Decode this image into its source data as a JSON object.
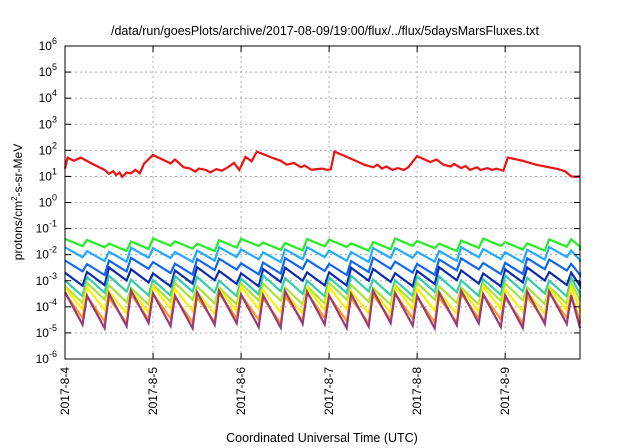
{
  "chart_data": {
    "type": "line",
    "title": "/data/run/goesPlots/archive/2017-08-09/19:00/flux/../flux/5daysMarsFluxes.txt",
    "xlabel": "Coordinated Universal Time (UTC)",
    "ylabel": {
      "base": "protons/cm",
      "sup": "2",
      "rest": "-s-sr-MeV"
    },
    "xlim": [
      0,
      5.85
    ],
    "ylim_log10": [
      -6,
      6
    ],
    "yscale": "log",
    "grid": true,
    "x_tick_labels": [
      "2017-8-4",
      "2017-8-5",
      "2017-8-6",
      "2017-8-7",
      "2017-8-8",
      "2017-8-9"
    ],
    "x_tick_values": [
      0,
      1,
      2,
      3,
      4,
      5
    ],
    "y_tick_labels": [
      {
        "exp": "-6"
      },
      {
        "exp": "-5"
      },
      {
        "exp": "-4"
      },
      {
        "exp": "-3"
      },
      {
        "exp": "-2"
      },
      {
        "exp": "-1"
      },
      {
        "exp": "0"
      },
      {
        "exp": "1"
      },
      {
        "exp": "2"
      },
      {
        "exp": "3"
      },
      {
        "exp": "4"
      },
      {
        "exp": "5"
      },
      {
        "exp": "6"
      }
    ],
    "y_tick_base": "10",
    "cycles_per_day": 4,
    "series": [
      {
        "color": "#ee1111",
        "log_points": [
          [
            0.0,
            1.3
          ],
          [
            0.03,
            1.72
          ],
          [
            0.1,
            1.6
          ],
          [
            0.18,
            1.72
          ],
          [
            0.3,
            1.5
          ],
          [
            0.45,
            1.25
          ],
          [
            0.5,
            1.1
          ],
          [
            0.55,
            1.2
          ],
          [
            0.58,
            1.05
          ],
          [
            0.62,
            1.15
          ],
          [
            0.65,
            0.98
          ],
          [
            0.7,
            1.15
          ],
          [
            0.75,
            1.12
          ],
          [
            0.8,
            1.25
          ],
          [
            0.85,
            1.12
          ],
          [
            0.9,
            1.5
          ],
          [
            1.0,
            1.82
          ],
          [
            1.2,
            1.5
          ],
          [
            1.25,
            1.65
          ],
          [
            1.35,
            1.35
          ],
          [
            1.42,
            1.3
          ],
          [
            1.48,
            1.18
          ],
          [
            1.52,
            1.3
          ],
          [
            1.6,
            1.25
          ],
          [
            1.65,
            1.15
          ],
          [
            1.72,
            1.28
          ],
          [
            1.78,
            1.22
          ],
          [
            1.85,
            1.35
          ],
          [
            1.92,
            1.52
          ],
          [
            1.98,
            1.25
          ],
          [
            2.05,
            1.75
          ],
          [
            2.12,
            1.58
          ],
          [
            2.18,
            1.95
          ],
          [
            2.35,
            1.72
          ],
          [
            2.45,
            1.6
          ],
          [
            2.52,
            1.45
          ],
          [
            2.6,
            1.52
          ],
          [
            2.68,
            1.35
          ],
          [
            2.72,
            1.42
          ],
          [
            2.8,
            1.25
          ],
          [
            2.86,
            1.28
          ],
          [
            2.92,
            1.3
          ],
          [
            2.98,
            1.25
          ],
          [
            3.02,
            1.28
          ],
          [
            3.06,
            1.95
          ],
          [
            3.2,
            1.75
          ],
          [
            3.3,
            1.6
          ],
          [
            3.4,
            1.45
          ],
          [
            3.5,
            1.35
          ],
          [
            3.55,
            1.45
          ],
          [
            3.6,
            1.3
          ],
          [
            3.65,
            1.38
          ],
          [
            3.72,
            1.25
          ],
          [
            3.78,
            1.32
          ],
          [
            3.85,
            1.25
          ],
          [
            3.9,
            1.35
          ],
          [
            4.0,
            1.78
          ],
          [
            4.15,
            1.55
          ],
          [
            4.22,
            1.65
          ],
          [
            4.3,
            1.45
          ],
          [
            4.38,
            1.38
          ],
          [
            4.42,
            1.48
          ],
          [
            4.5,
            1.32
          ],
          [
            4.55,
            1.4
          ],
          [
            4.6,
            1.25
          ],
          [
            4.68,
            1.35
          ],
          [
            4.72,
            1.25
          ],
          [
            4.8,
            1.32
          ],
          [
            4.85,
            1.25
          ],
          [
            4.9,
            1.3
          ],
          [
            4.98,
            1.22
          ],
          [
            5.03,
            1.72
          ],
          [
            5.2,
            1.6
          ],
          [
            5.35,
            1.45
          ],
          [
            5.5,
            1.35
          ],
          [
            5.6,
            1.28
          ],
          [
            5.68,
            1.2
          ],
          [
            5.75,
            1.0
          ],
          [
            5.8,
            0.98
          ],
          [
            5.85,
            1.0
          ]
        ]
      },
      {
        "color": "#22ee22",
        "base": -1.62,
        "amp": 0.28,
        "var": 0.1
      },
      {
        "color": "#22aaff",
        "base": -2.0,
        "amp": 0.38,
        "var": 0.1
      },
      {
        "color": "#1166ee",
        "base": -2.45,
        "amp": 0.42,
        "var": 0.12
      },
      {
        "color": "#0a2ab0",
        "base": -2.85,
        "amp": 0.5,
        "var": 0.12
      },
      {
        "color": "#33ccaa",
        "base": -3.2,
        "amp": 0.6,
        "var": 0.1
      },
      {
        "color": "#a8e33b",
        "base": -3.5,
        "amp": 0.65,
        "var": 0.1
      },
      {
        "color": "#ffee00",
        "base": -3.75,
        "amp": 0.85,
        "var": 0.1
      },
      {
        "color": "#ff9922",
        "base": -4.05,
        "amp": 0.95,
        "var": 0.1
      },
      {
        "color": "#9a3a7a",
        "base": -4.1,
        "amp": 1.25,
        "var": 0.1
      }
    ]
  }
}
